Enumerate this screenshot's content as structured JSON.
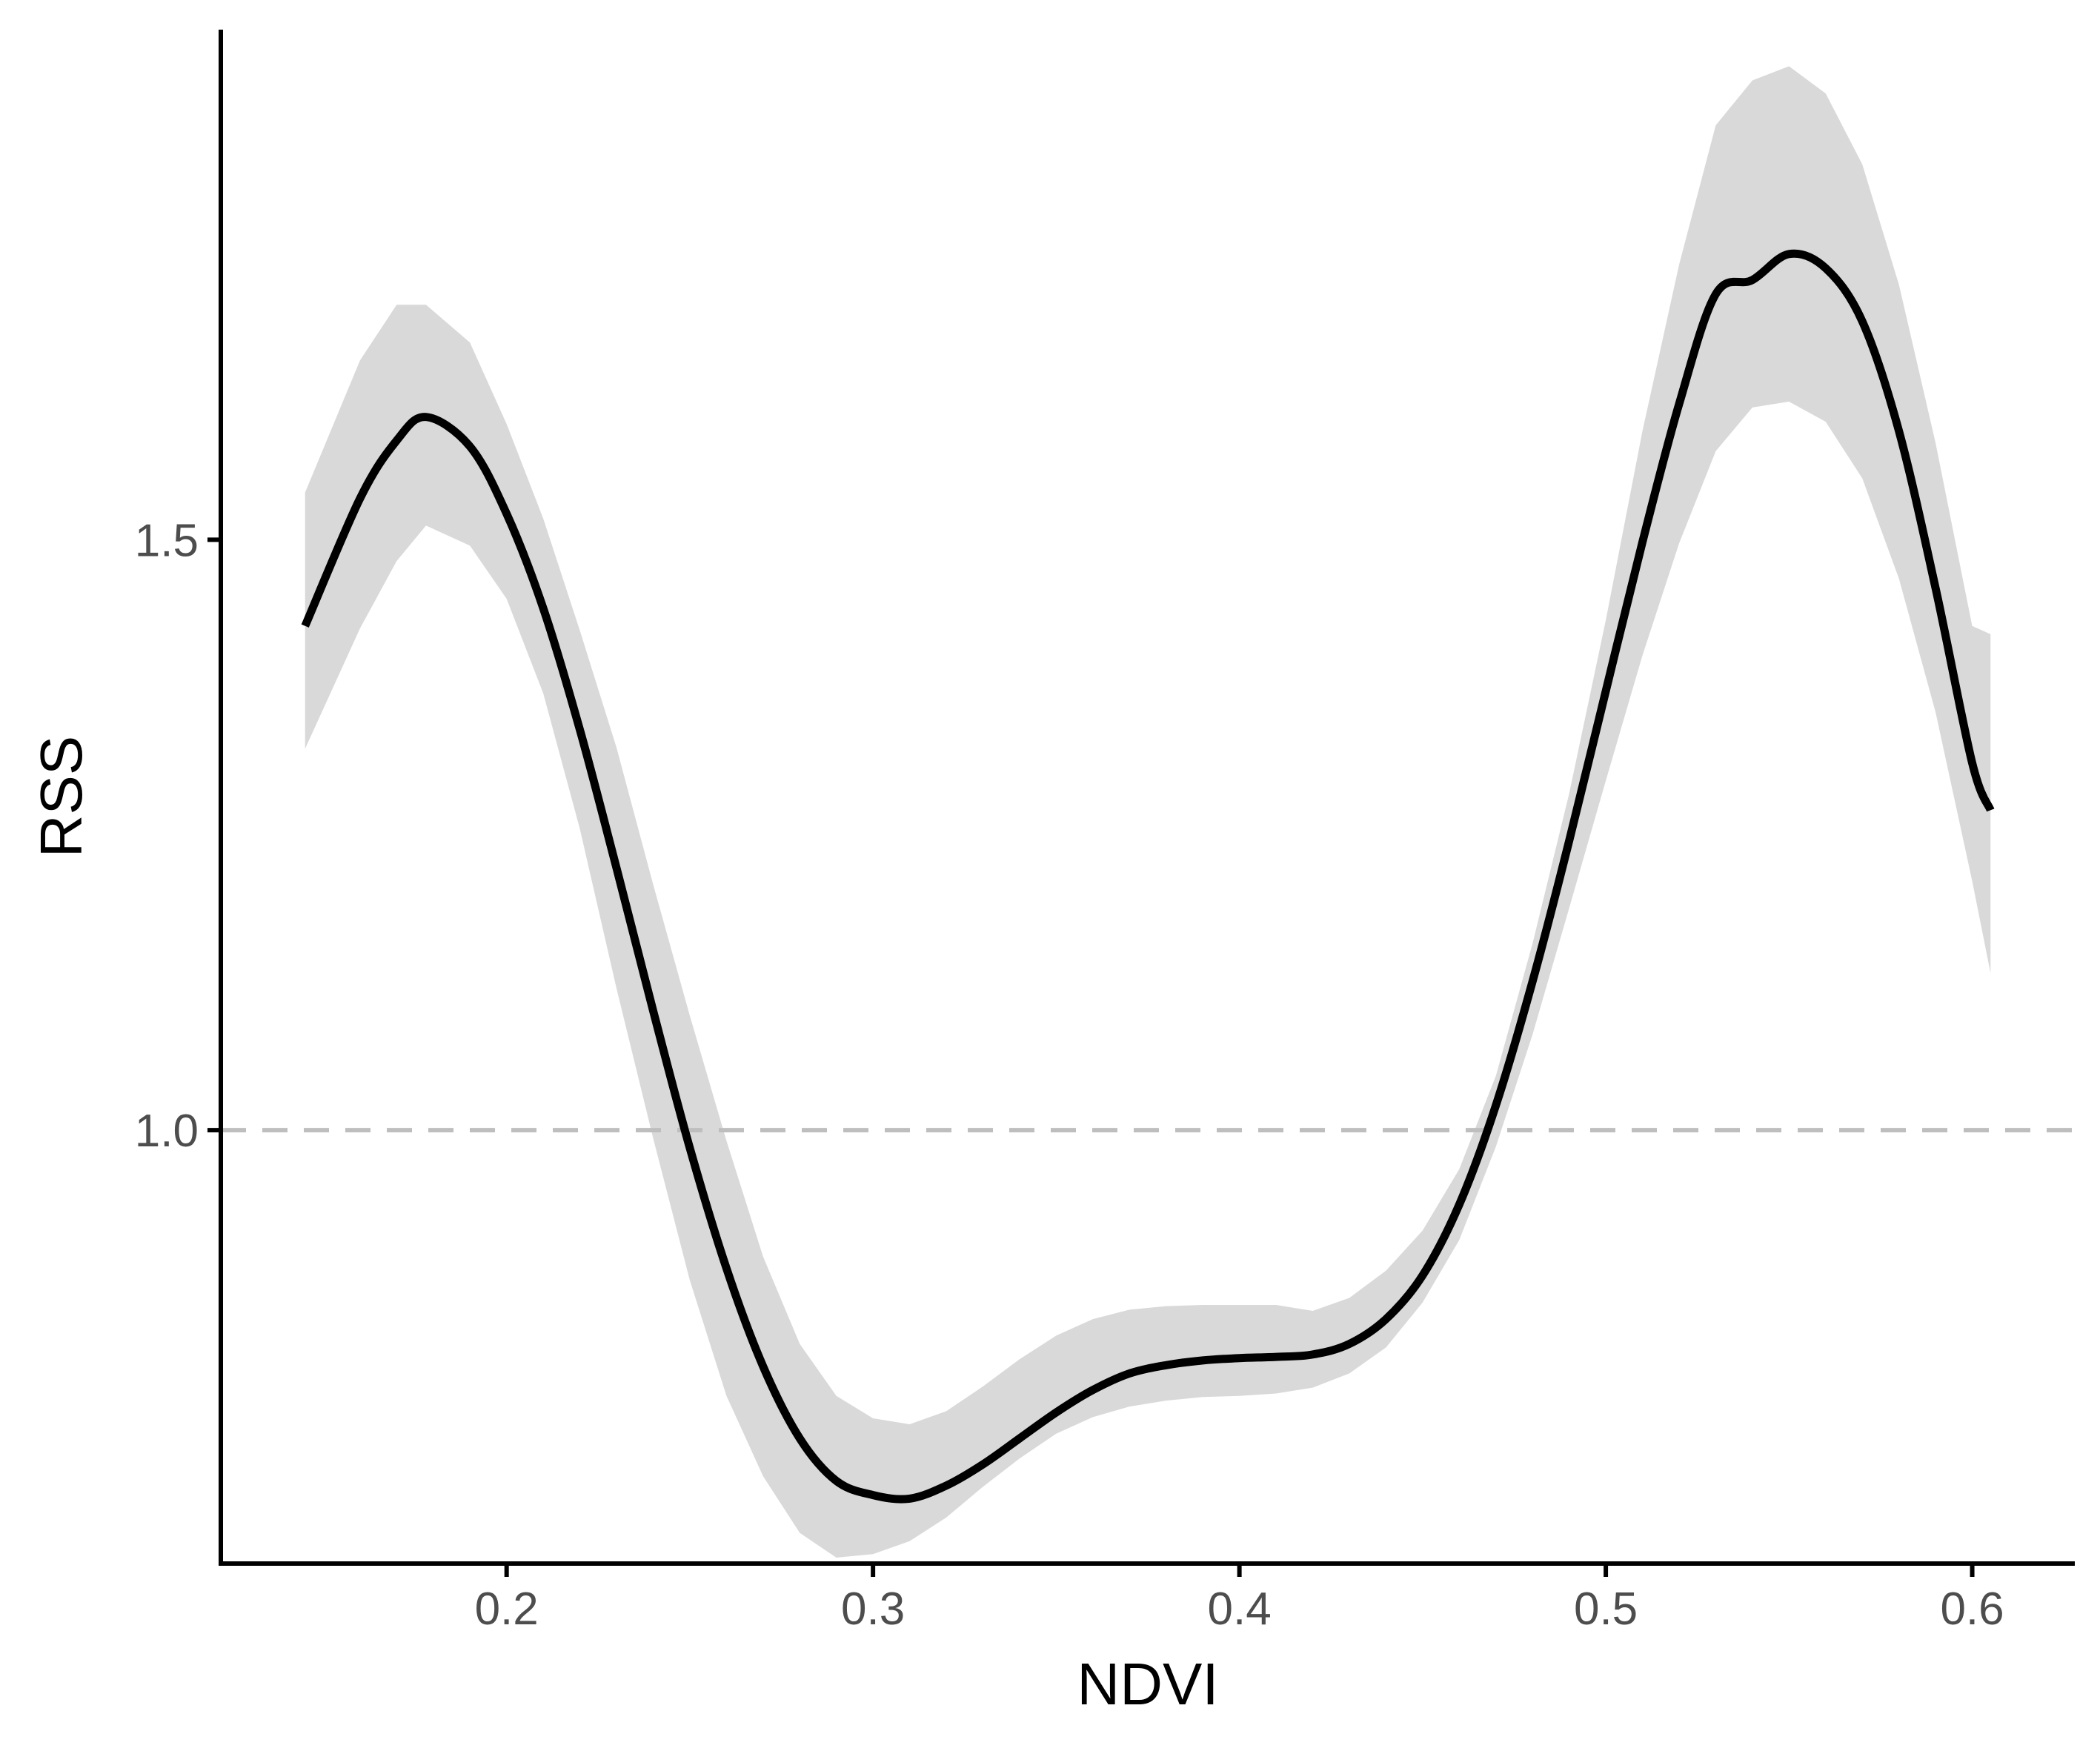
{
  "chart_data": {
    "type": "line",
    "title": "",
    "xlabel": "NDVI",
    "ylabel": "RSS",
    "xlim": [
      0.122,
      0.628
    ],
    "ylim": [
      0.633,
      1.932
    ],
    "x_ticks": [
      0.2,
      0.3,
      0.4,
      0.5,
      0.6
    ],
    "x_tick_labels": [
      "0.2",
      "0.3",
      "0.4",
      "0.5",
      "0.6"
    ],
    "y_ticks": [
      1.0,
      1.5
    ],
    "y_tick_labels": [
      "1.0",
      "1.5"
    ],
    "grid": false,
    "legend": "none",
    "reference_line": {
      "y": 1.0,
      "style": "dashed",
      "color": "#bebebe"
    },
    "colors": {
      "line": "#000000",
      "ribbon": "#d9d9d9",
      "axis": "#000000",
      "tick_label": "#4d4d4d"
    },
    "series": [
      {
        "x": [
          0.145,
          0.16,
          0.17,
          0.178,
          0.19,
          0.2,
          0.21,
          0.22,
          0.23,
          0.24,
          0.25,
          0.26,
          0.27,
          0.28,
          0.29,
          0.3,
          0.31,
          0.32,
          0.33,
          0.34,
          0.35,
          0.36,
          0.37,
          0.38,
          0.39,
          0.4,
          0.41,
          0.42,
          0.43,
          0.44,
          0.45,
          0.46,
          0.47,
          0.48,
          0.49,
          0.5,
          0.51,
          0.52,
          0.53,
          0.54,
          0.55,
          0.56,
          0.57,
          0.58,
          0.59,
          0.6,
          0.605
        ],
        "y": [
          1.427,
          1.535,
          1.584,
          1.604,
          1.579,
          1.522,
          1.442,
          1.339,
          1.222,
          1.101,
          0.985,
          0.883,
          0.8,
          0.739,
          0.703,
          0.691,
          0.688,
          0.699,
          0.717,
          0.739,
          0.761,
          0.78,
          0.794,
          0.801,
          0.805,
          0.807,
          0.808,
          0.81,
          0.819,
          0.84,
          0.877,
          0.937,
          1.021,
          1.126,
          1.245,
          1.372,
          1.498,
          1.615,
          1.708,
          1.72,
          1.742,
          1.73,
          1.685,
          1.592,
          1.459,
          1.311,
          1.271
        ],
        "lower": [
          1.323,
          1.425,
          1.482,
          1.512,
          1.495,
          1.45,
          1.37,
          1.255,
          1.12,
          0.993,
          0.873,
          0.775,
          0.707,
          0.659,
          0.638,
          0.641,
          0.652,
          0.672,
          0.698,
          0.722,
          0.743,
          0.757,
          0.766,
          0.771,
          0.774,
          0.775,
          0.777,
          0.782,
          0.794,
          0.816,
          0.854,
          0.907,
          0.986,
          1.081,
          1.188,
          1.296,
          1.402,
          1.497,
          1.575,
          1.612,
          1.617,
          1.6,
          1.552,
          1.467,
          1.354,
          1.211,
          1.133
        ],
        "upper": [
          1.54,
          1.652,
          1.699,
          1.699,
          1.667,
          1.598,
          1.518,
          1.423,
          1.324,
          1.208,
          1.097,
          0.991,
          0.893,
          0.819,
          0.775,
          0.756,
          0.751,
          0.762,
          0.783,
          0.806,
          0.826,
          0.84,
          0.848,
          0.851,
          0.852,
          0.852,
          0.852,
          0.847,
          0.858,
          0.881,
          0.915,
          0.967,
          1.046,
          1.158,
          1.285,
          1.432,
          1.592,
          1.733,
          1.851,
          1.889,
          1.901,
          1.878,
          1.818,
          1.716,
          1.582,
          1.427,
          1.42
        ]
      }
    ]
  }
}
